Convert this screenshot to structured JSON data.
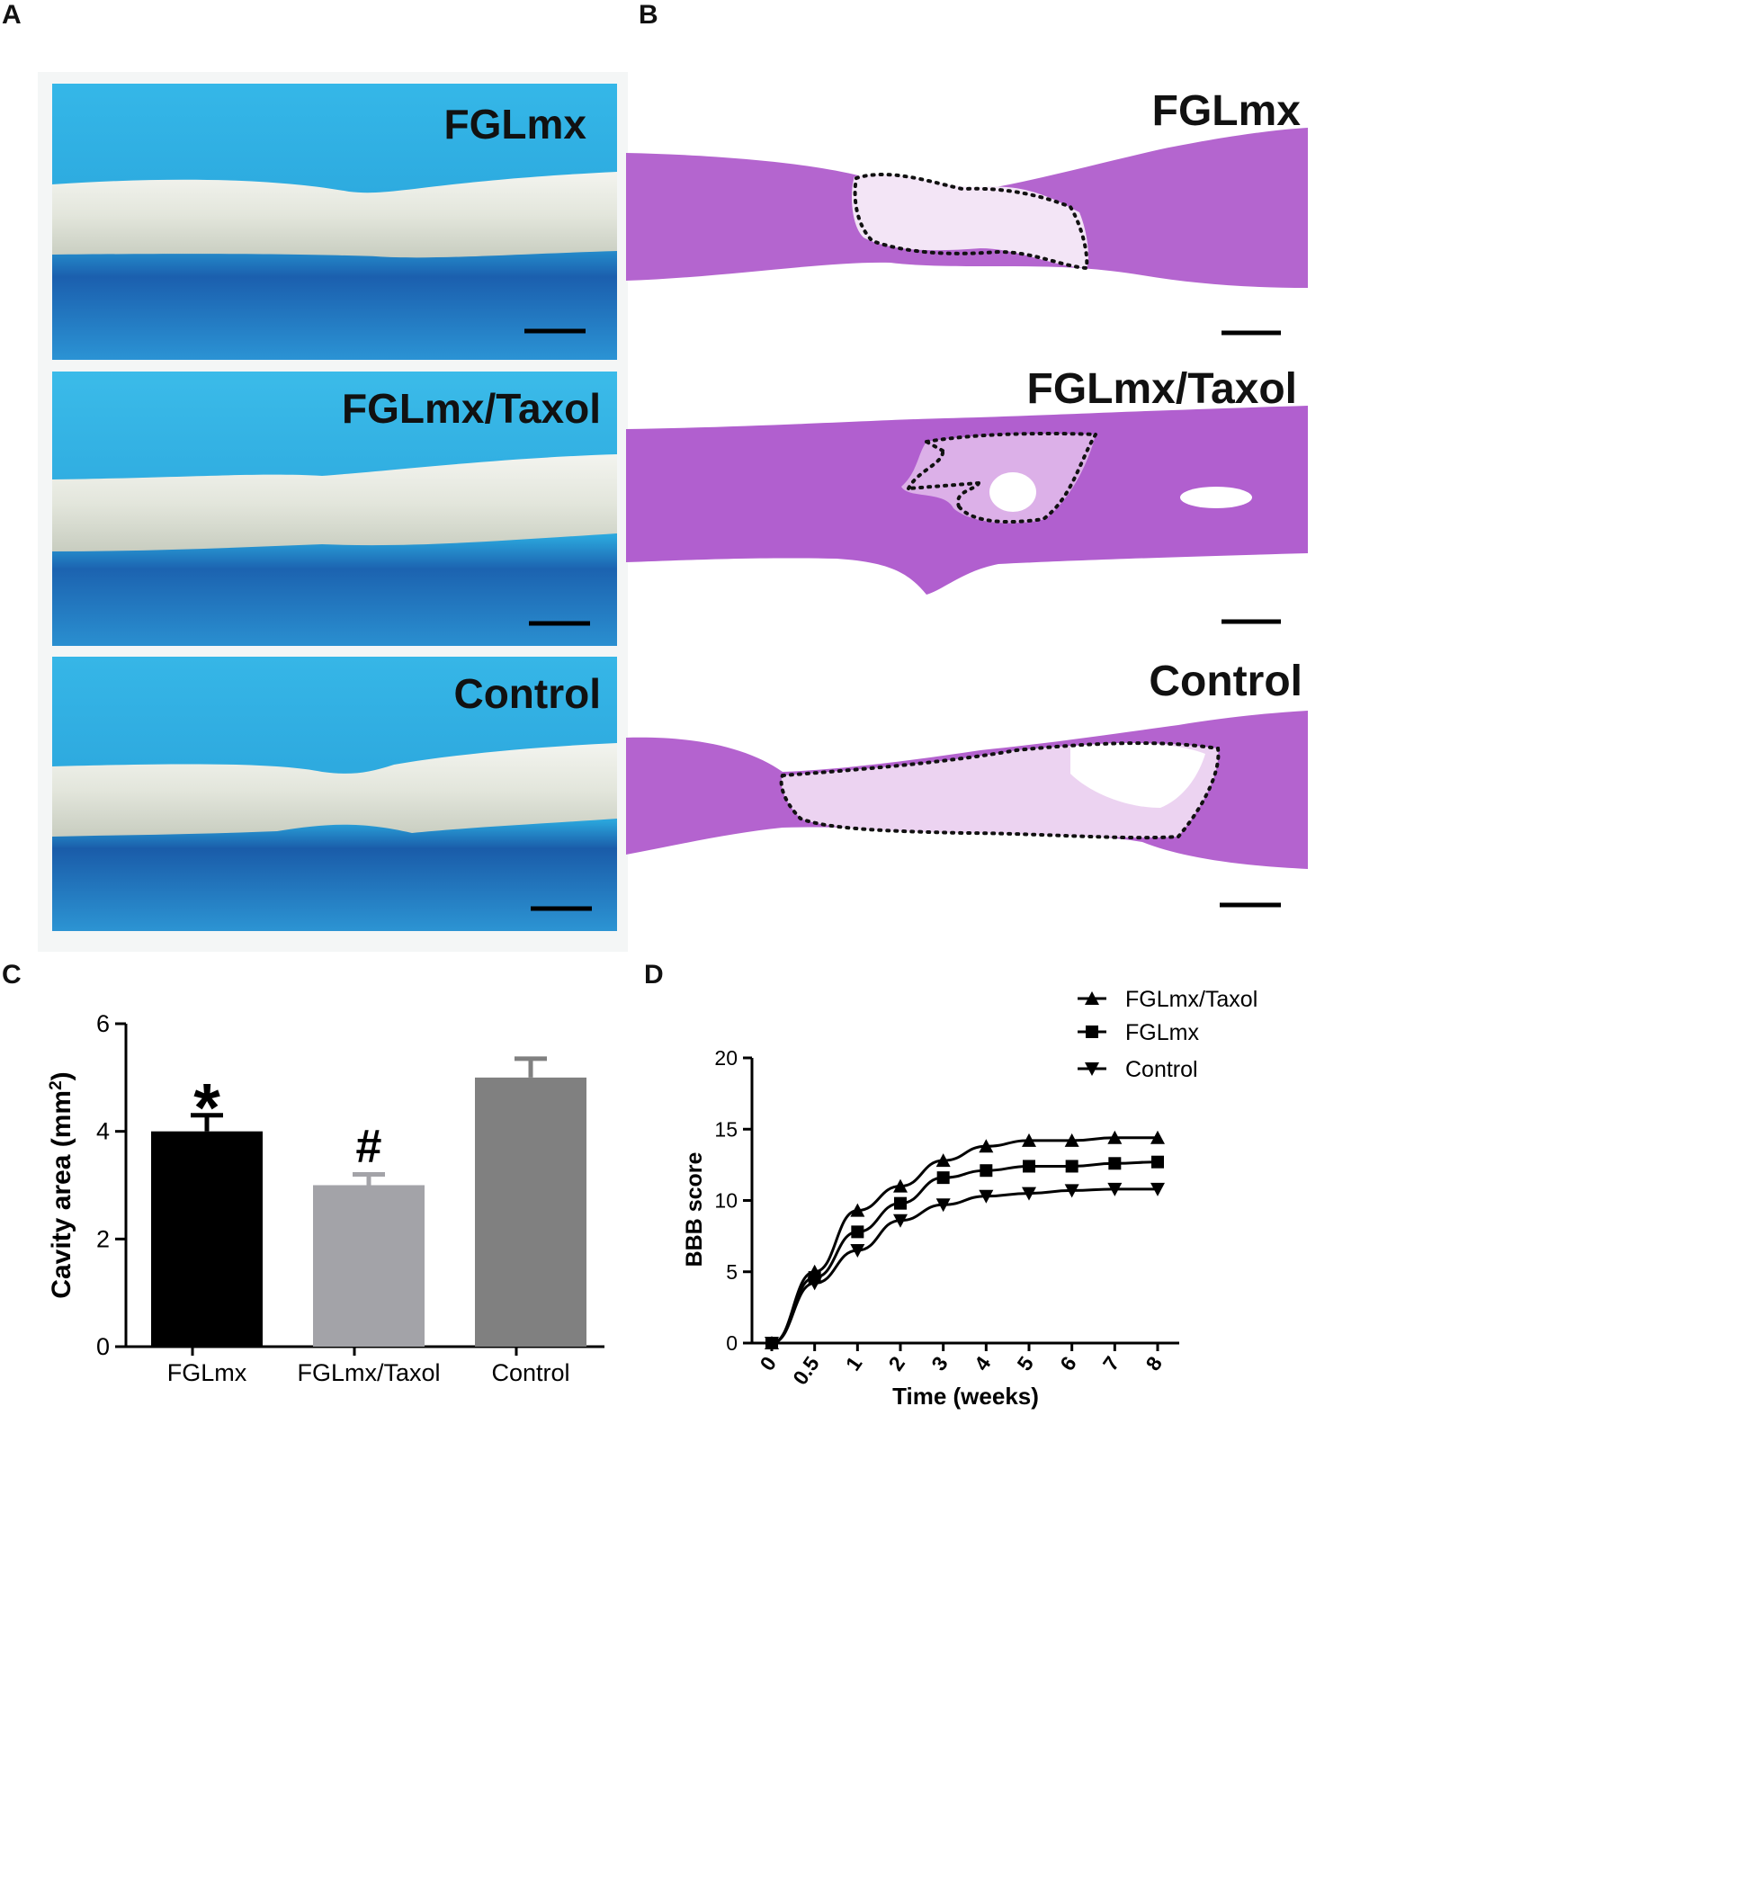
{
  "panels": {
    "a": {
      "letter": "A",
      "labels": [
        "FGLmx",
        "FGLmx/Taxol",
        "Control"
      ],
      "colors": {
        "felt": "#2eaee0",
        "felt_dark": "#1f6fc0",
        "cord": "#e4e7de"
      }
    },
    "b": {
      "letter": "B",
      "labels": [
        "FGLmx",
        "FGLmx/Taxol",
        "Control"
      ],
      "colors": {
        "tissue": "#b15fcf",
        "tissue_light": "#d7a4e6"
      }
    },
    "c": {
      "letter": "C"
    },
    "d": {
      "letter": "D"
    }
  },
  "chart_data": [
    {
      "type": "bar",
      "categories": [
        "FGLmx",
        "FGLmx/Taxol",
        "Control"
      ],
      "values": [
        4.0,
        3.0,
        5.0
      ],
      "errors": [
        0.3,
        0.2,
        0.35
      ],
      "bar_colors": [
        "#000000",
        "#a3a3a8",
        "#808080"
      ],
      "annotations": [
        "*",
        "#",
        ""
      ],
      "ylabel": "Cavity area (mm²)",
      "ylabel_main": "Cavity area (mm",
      "ylabel_sup": "2",
      "ylabel_end": ")",
      "ylim": [
        0,
        6
      ],
      "yticks": [
        0,
        2,
        4,
        6
      ]
    },
    {
      "type": "line",
      "x": [
        0,
        0.5,
        1,
        2,
        3,
        4,
        5,
        6,
        7,
        8
      ],
      "xtick_labels": [
        "0",
        "0.5",
        "1",
        "2",
        "3",
        "4",
        "5",
        "6",
        "7",
        "8"
      ],
      "series": [
        {
          "name": "FGLmx/Taxol",
          "marker": "triangle-up",
          "values": [
            0,
            5.0,
            9.3,
            11.0,
            12.8,
            13.8,
            14.2,
            14.2,
            14.4,
            14.4
          ]
        },
        {
          "name": "FGLmx",
          "marker": "square",
          "values": [
            0,
            4.6,
            7.8,
            9.8,
            11.6,
            12.1,
            12.4,
            12.4,
            12.6,
            12.7
          ]
        },
        {
          "name": "Control",
          "marker": "triangle-down",
          "values": [
            0,
            4.2,
            6.5,
            8.6,
            9.7,
            10.3,
            10.5,
            10.7,
            10.8,
            10.8
          ]
        }
      ],
      "xlabel": "Time (weeks)",
      "ylabel": "BBB score",
      "ylim": [
        0,
        20
      ],
      "yticks": [
        0,
        5,
        10,
        15,
        20
      ],
      "legend_position": "top-right"
    }
  ]
}
